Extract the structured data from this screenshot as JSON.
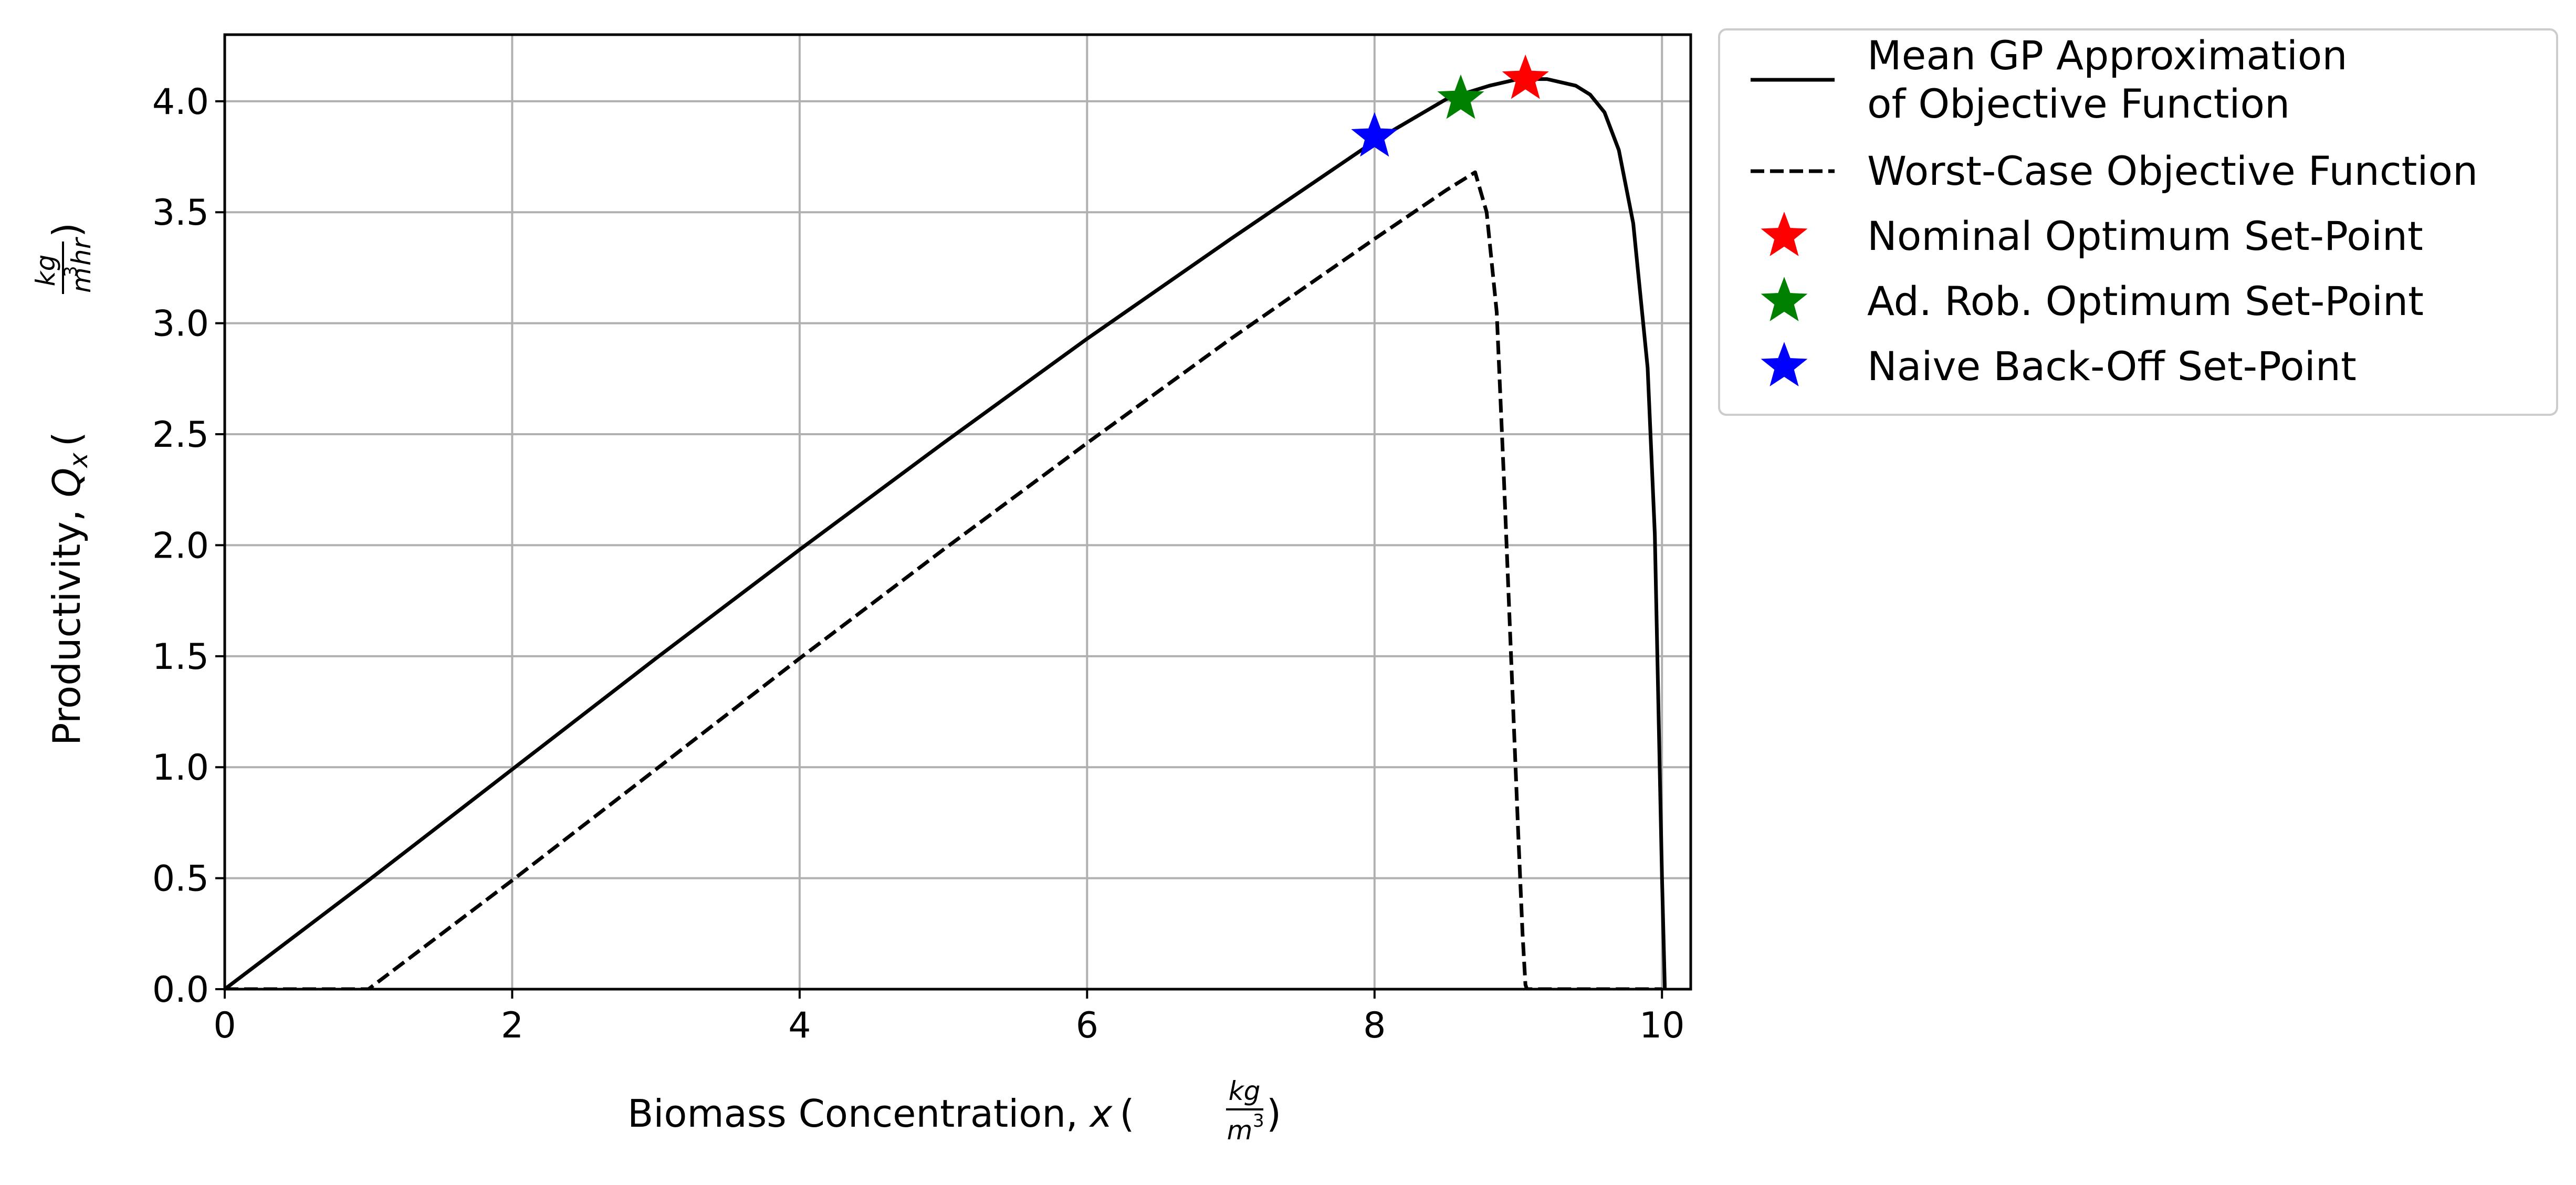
{
  "chart_data": {
    "type": "line",
    "title": "",
    "xlabel": "Biomass Concentration, x (kg/m³)",
    "ylabel": "Productivity, Qₓ (kg/m³hr)",
    "xlim": [
      0,
      10.2
    ],
    "ylim": [
      0,
      4.3
    ],
    "grid": true,
    "legend_position": "outside-right-top",
    "x_ticks": [
      0,
      2,
      4,
      6,
      8,
      10
    ],
    "x_tick_labels": [
      "0",
      "2",
      "4",
      "6",
      "8",
      "10"
    ],
    "y_ticks": [
      0,
      0.5,
      1,
      1.5,
      2,
      2.5,
      3,
      3.5,
      4
    ],
    "y_tick_labels": [
      "0.0",
      "0.5",
      "1.0",
      "1.5",
      "2.0",
      "2.5",
      "3.0",
      "3.5",
      "4.0"
    ],
    "x_label_parts": {
      "prefix": "Biomass Concentration, ",
      "var": "x",
      "num": "kg",
      "den": "m",
      "den_sup": "3"
    },
    "y_label_parts": {
      "prefix": "Productivity, ",
      "var": "Q",
      "var_sub": "x",
      "num": "kg",
      "den": "m",
      "den_sup": "3",
      "den_rest": "hr"
    },
    "series": [
      {
        "name": "Mean GP Approximation of Objective Function",
        "style": "solid",
        "color": "#000000",
        "x": [
          0,
          1,
          2,
          3,
          4,
          5,
          6,
          7,
          8,
          8.5,
          8.8,
          9.0,
          9.2,
          9.4,
          9.5,
          9.6,
          9.7,
          9.8,
          9.9,
          9.95,
          10.0,
          10.02
        ],
        "y": [
          0,
          0.49,
          0.99,
          1.49,
          1.98,
          2.46,
          2.93,
          3.38,
          3.82,
          4.01,
          4.07,
          4.1,
          4.1,
          4.07,
          4.03,
          3.95,
          3.78,
          3.45,
          2.8,
          2.05,
          0.5,
          0.0
        ]
      },
      {
        "name": "Worst-Case Objective Function",
        "style": "dashed",
        "color": "#000000",
        "x": [
          0,
          1.0,
          2,
          3,
          4,
          5,
          6,
          7,
          8,
          8.5,
          8.7,
          8.78,
          8.85,
          8.9,
          8.95,
          9.0,
          9.03,
          9.05,
          9.06,
          10.0
        ],
        "y": [
          0,
          0.0,
          0.49,
          0.99,
          1.49,
          1.98,
          2.46,
          2.93,
          3.38,
          3.6,
          3.68,
          3.5,
          3.05,
          2.3,
          1.5,
          0.7,
          0.25,
          0.02,
          0,
          0
        ]
      }
    ],
    "markers": [
      {
        "name": "Nominal Optimum Set-Point",
        "x": 9.05,
        "y": 4.1,
        "color": "#ff0000"
      },
      {
        "name": "Ad. Rob. Optimum Set-Point",
        "x": 8.6,
        "y": 4.01,
        "color": "#008000"
      },
      {
        "name": "Naive Back-Off Set-Point",
        "x": 8.0,
        "y": 3.84,
        "color": "#0000ff"
      }
    ],
    "legend": {
      "entries": [
        {
          "lines": [
            "Mean GP Approximation",
            "of Objective Function"
          ],
          "kind": "solid"
        },
        {
          "lines": [
            "Worst-Case Objective Function"
          ],
          "kind": "dashed"
        },
        {
          "lines": [
            "Nominal Optimum Set-Point"
          ],
          "kind": "star",
          "color": "#ff0000"
        },
        {
          "lines": [
            "Ad. Rob. Optimum Set-Point"
          ],
          "kind": "star",
          "color": "#008000"
        },
        {
          "lines": [
            "Naive Back-Off Set-Point"
          ],
          "kind": "star",
          "color": "#0000ff"
        }
      ]
    }
  }
}
